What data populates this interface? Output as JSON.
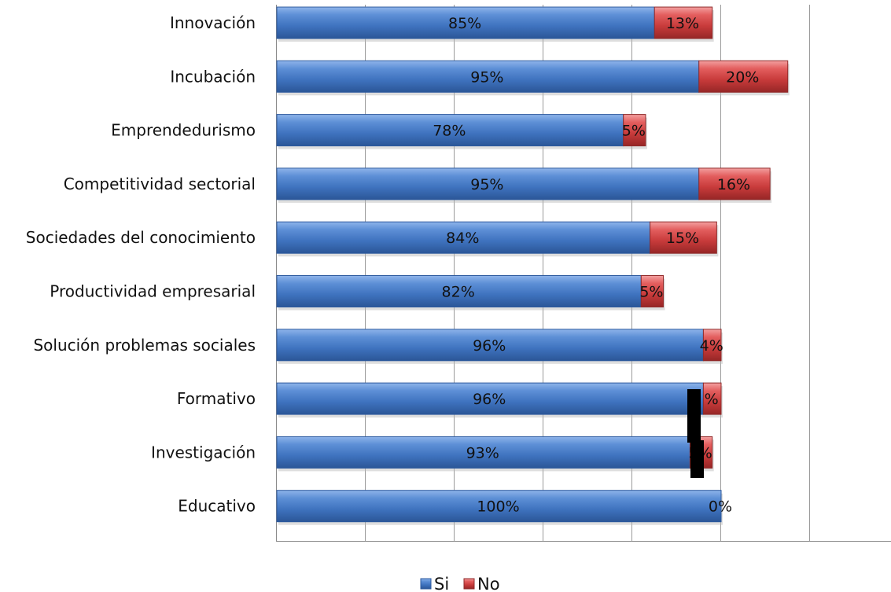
{
  "chart_data": {
    "type": "bar",
    "orientation": "horizontal",
    "stacked": true,
    "categories": [
      "Innovación",
      "Incubación",
      "Emprendedurismo",
      "Competitividad sectorial",
      "Sociedades del conocimiento",
      "Productividad empresarial",
      "Solución problemas sociales",
      "Formativo",
      "Investigación",
      "Educativo"
    ],
    "series": [
      {
        "name": "Si",
        "color": "#4a7fc9",
        "values": [
          85,
          95,
          78,
          95,
          84,
          82,
          96,
          96,
          93,
          100
        ],
        "labels": [
          "85%",
          "95%",
          "78%",
          "95%",
          "84%",
          "82%",
          "96%",
          "96%",
          "93%",
          "100%"
        ]
      },
      {
        "name": "No",
        "color": "#d94a4a",
        "values": [
          13,
          20,
          5,
          16,
          15,
          5,
          4,
          4,
          5,
          0
        ],
        "labels": [
          "13%",
          "20%",
          "5%",
          "16%",
          "15%",
          "5%",
          "4%",
          "%",
          "5%",
          "0%"
        ]
      }
    ],
    "xlim": [
      0,
      140
    ],
    "grid": true,
    "legend": "bottom",
    "redaction_color": "#000000"
  }
}
